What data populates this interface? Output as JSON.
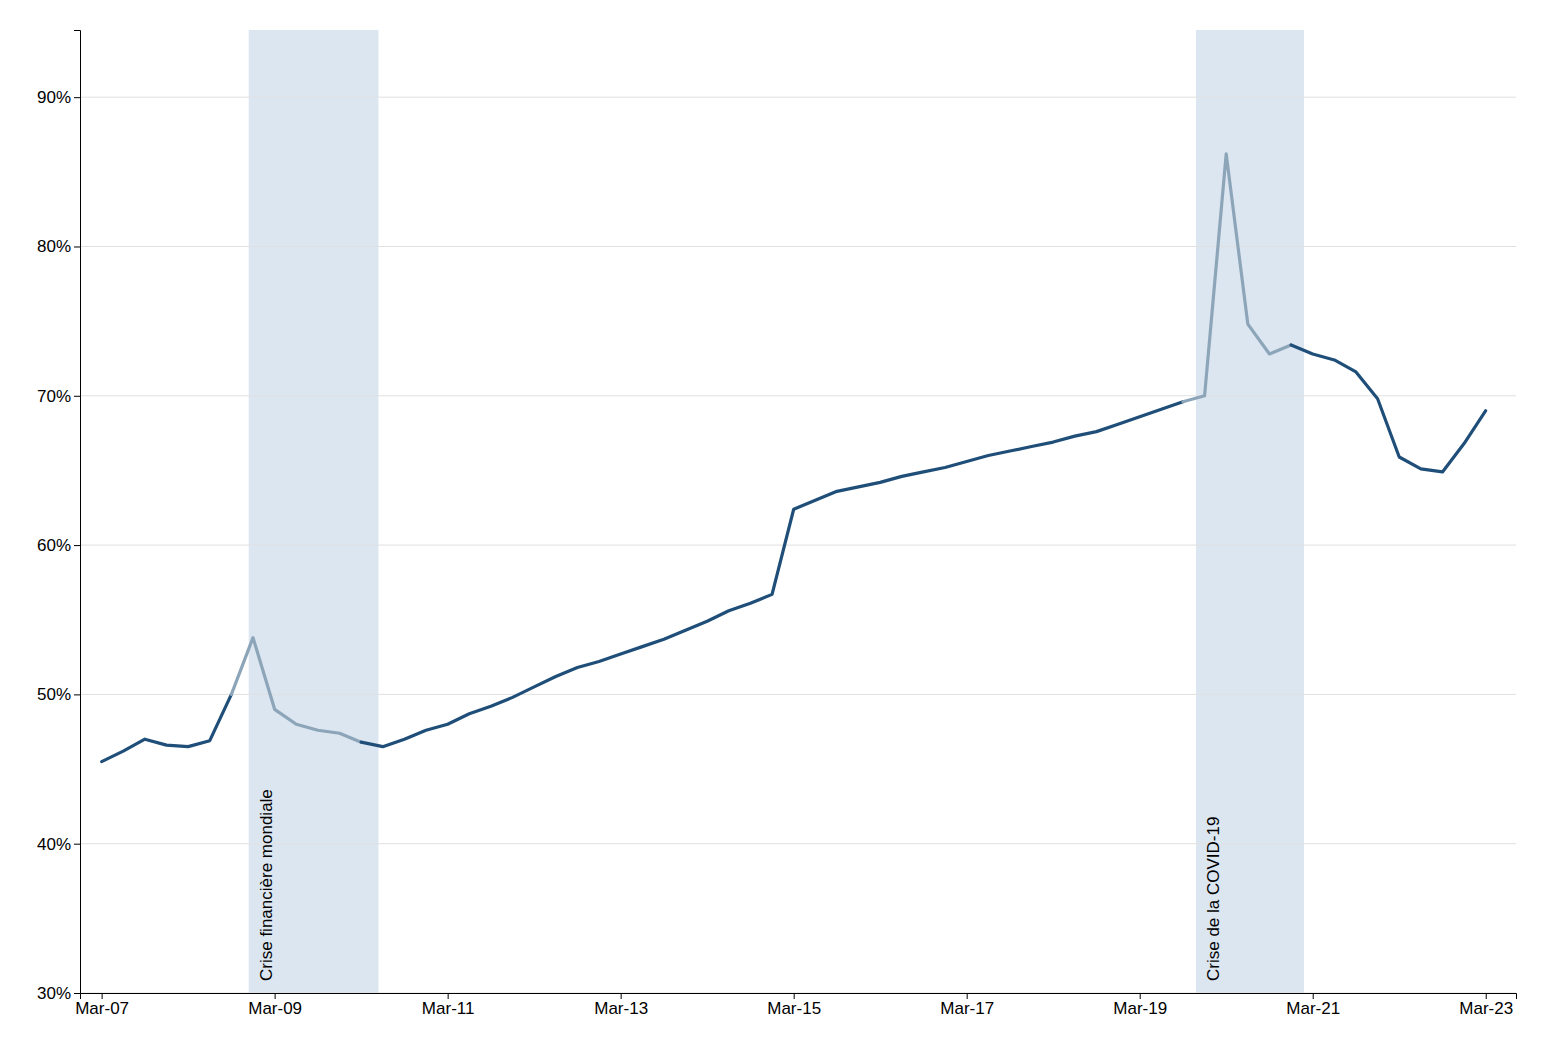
{
  "chart_data": {
    "type": "line",
    "background_color": "#ffffff",
    "xlim": [
      2007.0,
      2023.6
    ],
    "xticks": [
      {
        "value": 2007.25,
        "label": "Mar-07"
      },
      {
        "value": 2009.25,
        "label": "Mar-09"
      },
      {
        "value": 2011.25,
        "label": "Mar-11"
      },
      {
        "value": 2013.25,
        "label": "Mar-13"
      },
      {
        "value": 2015.25,
        "label": "Mar-15"
      },
      {
        "value": 2017.25,
        "label": "Mar-17"
      },
      {
        "value": 2019.25,
        "label": "Mar-19"
      },
      {
        "value": 2021.25,
        "label": "Mar-21"
      },
      {
        "value": 2023.25,
        "label": "Mar-23"
      }
    ],
    "ylim": [
      0.3,
      0.945
    ],
    "yticks": [
      {
        "value": 0.3,
        "label": "30%"
      },
      {
        "value": 0.4,
        "label": "40%"
      },
      {
        "value": 0.5,
        "label": "50%"
      },
      {
        "value": 0.6,
        "label": "60%"
      },
      {
        "value": 0.7,
        "label": "70%"
      },
      {
        "value": 0.8,
        "label": "80%"
      },
      {
        "value": 0.9,
        "label": "90%"
      }
    ],
    "grid": true,
    "annotations": [
      {
        "text": "Crise financière mondiale",
        "x_start": 2008.95,
        "x_end": 2010.45,
        "color": "#dce6f1",
        "line_color": "#8da5b8"
      },
      {
        "text": "Crise de la COVID-19",
        "x_start": 2019.9,
        "x_end": 2021.15,
        "color": "#dce6f1",
        "line_color": "#8da5b8"
      }
    ],
    "x": [
      2007.25,
      2007.5,
      2007.75,
      2008.0,
      2008.25,
      2008.5,
      2008.75,
      2009.0,
      2009.25,
      2009.5,
      2009.75,
      2010.0,
      2010.25,
      2010.5,
      2010.75,
      2011.0,
      2011.25,
      2011.5,
      2011.75,
      2012.0,
      2012.25,
      2012.5,
      2012.75,
      2013.0,
      2013.25,
      2013.5,
      2013.75,
      2014.0,
      2014.25,
      2014.5,
      2014.75,
      2015.0,
      2015.25,
      2015.5,
      2015.75,
      2016.0,
      2016.25,
      2016.5,
      2016.75,
      2017.0,
      2017.25,
      2017.5,
      2017.75,
      2018.0,
      2018.25,
      2018.5,
      2018.75,
      2019.0,
      2019.25,
      2019.5,
      2019.75,
      2020.0,
      2020.25,
      2020.5,
      2020.75,
      2021.0,
      2021.25,
      2021.5,
      2021.75,
      2022.0,
      2022.25,
      2022.5,
      2022.75,
      2023.0,
      2023.25
    ],
    "series": [
      {
        "color": "#1f4e79",
        "values": [
          0.455,
          0.462,
          0.47,
          0.466,
          0.465,
          0.469,
          0.5,
          0.538,
          0.49,
          0.48,
          0.476,
          0.474,
          0.468,
          0.465,
          0.47,
          0.476,
          0.48,
          0.487,
          0.492,
          0.498,
          0.505,
          0.512,
          0.518,
          0.522,
          0.527,
          0.532,
          0.537,
          0.543,
          0.549,
          0.556,
          0.561,
          0.567,
          0.624,
          0.63,
          0.636,
          0.639,
          0.642,
          0.646,
          0.649,
          0.652,
          0.656,
          0.66,
          0.663,
          0.666,
          0.669,
          0.673,
          0.676,
          0.681,
          0.686,
          0.691,
          0.696,
          0.7,
          0.862,
          0.748,
          0.728,
          0.734,
          0.728,
          0.724,
          0.716,
          0.698,
          0.659,
          0.651,
          0.649,
          0.668,
          0.69
        ]
      }
    ]
  }
}
